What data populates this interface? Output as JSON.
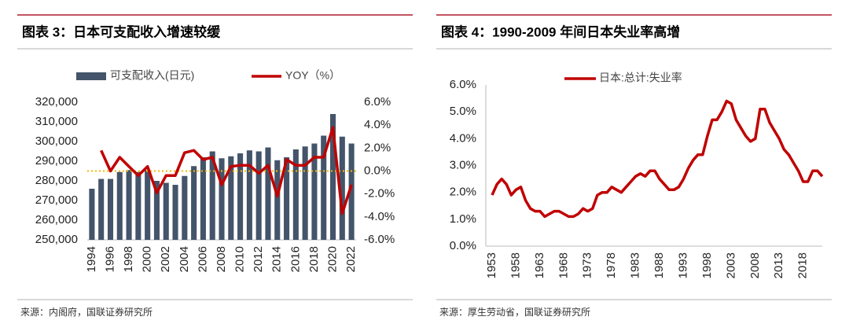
{
  "chart_data": [
    {
      "type": "bar",
      "heading": "图表 3：日本可支配收入增速较缓",
      "source": "来源：内阁府，国联证券研究所",
      "categories": [
        "1994",
        null,
        "1996",
        null,
        "1998",
        null,
        "2000",
        null,
        "2002",
        null,
        "2004",
        null,
        "2006",
        null,
        "2008",
        null,
        "2010",
        null,
        "2012",
        null,
        "2014",
        null,
        "2016",
        null,
        "2018",
        null,
        "2020",
        null,
        "2022"
      ],
      "series": [
        {
          "name": "可支配收入(日元)",
          "color": "#44546a",
          "type": "bar",
          "values": [
            276000,
            281000,
            281000,
            284500,
            285500,
            284500,
            285500,
            280000,
            279000,
            278000,
            282500,
            287500,
            292000,
            295000,
            291500,
            292500,
            294000,
            295500,
            295000,
            297000,
            290500,
            292000,
            296000,
            297500,
            299000,
            303000,
            314000,
            302500,
            299000
          ]
        },
        {
          "name": "YOY（%）",
          "color": "#c00000",
          "type": "line",
          "axis": "y2",
          "values": [
            null,
            1.8,
            0.0,
            1.2,
            0.4,
            -0.4,
            0.4,
            -1.9,
            -0.4,
            -0.4,
            1.6,
            1.8,
            1.0,
            1.2,
            -1.2,
            0.4,
            0.5,
            0.5,
            -0.2,
            0.5,
            -2.2,
            1.0,
            0.5,
            0.5,
            1.2,
            1.2,
            3.8,
            -3.7,
            -1.2
          ]
        }
      ],
      "ylim": [
        250000,
        320000
      ],
      "yticks": [
        {
          "value": 250000,
          "label": "250,000"
        },
        {
          "value": 260000,
          "label": "260,000"
        },
        {
          "value": 270000,
          "label": "270,000"
        },
        {
          "value": 280000,
          "label": "280,000"
        },
        {
          "value": 290000,
          "label": "290,000"
        },
        {
          "value": 300000,
          "label": "300,000"
        },
        {
          "value": 310000,
          "label": "310,000"
        },
        {
          "value": 320000,
          "label": "320,000"
        }
      ],
      "y2lim": [
        -6,
        6
      ],
      "y2ticks": [
        {
          "value": -6,
          "label": "-6.0%"
        },
        {
          "value": -4,
          "label": "-4.0%"
        },
        {
          "value": -2,
          "label": "-2.0%"
        },
        {
          "value": 0,
          "label": "0.0%"
        },
        {
          "value": 2,
          "label": "2.0%"
        },
        {
          "value": 4,
          "label": "4.0%"
        },
        {
          "value": 6,
          "label": "6.0%"
        }
      ],
      "reference_line": {
        "axis": "y2",
        "value": 0,
        "color": "#f5b800"
      },
      "legend": "top"
    },
    {
      "type": "line",
      "heading": "图表 4：1990-2009 年间日本失业率高增",
      "source": "来源：厚生劳动省，国联证券研究所",
      "x": [
        1953,
        1954,
        1955,
        1956,
        1957,
        1958,
        1959,
        1960,
        1961,
        1962,
        1963,
        1964,
        1965,
        1966,
        1967,
        1968,
        1969,
        1970,
        1971,
        1972,
        1973,
        1974,
        1975,
        1976,
        1977,
        1978,
        1979,
        1980,
        1981,
        1982,
        1983,
        1984,
        1985,
        1986,
        1987,
        1988,
        1989,
        1990,
        1991,
        1992,
        1993,
        1994,
        1995,
        1996,
        1997,
        1998,
        1999,
        2000,
        2001,
        2002,
        2003,
        2004,
        2005,
        2006,
        2007,
        2008,
        2009,
        2010,
        2011,
        2012,
        2013,
        2014,
        2015,
        2016,
        2017,
        2018,
        2019,
        2020,
        2021,
        2022
      ],
      "series": [
        {
          "name": "日本:总计:失业率",
          "color": "#c00000",
          "values": [
            1.9,
            2.3,
            2.5,
            2.3,
            1.9,
            2.1,
            2.2,
            1.7,
            1.4,
            1.3,
            1.3,
            1.1,
            1.2,
            1.3,
            1.3,
            1.2,
            1.1,
            1.1,
            1.2,
            1.4,
            1.3,
            1.4,
            1.9,
            2.0,
            2.0,
            2.2,
            2.1,
            2.0,
            2.2,
            2.4,
            2.6,
            2.7,
            2.6,
            2.8,
            2.8,
            2.5,
            2.3,
            2.1,
            2.1,
            2.2,
            2.5,
            2.9,
            3.2,
            3.4,
            3.4,
            4.1,
            4.7,
            4.7,
            5.0,
            5.4,
            5.3,
            4.7,
            4.4,
            4.1,
            3.9,
            4.0,
            5.1,
            5.1,
            4.6,
            4.3,
            4.0,
            3.6,
            3.4,
            3.1,
            2.8,
            2.4,
            2.4,
            2.8,
            2.8,
            2.6
          ]
        }
      ],
      "xlim": [
        1953,
        2022
      ],
      "xticks": [
        1953,
        1958,
        1963,
        1968,
        1973,
        1978,
        1983,
        1988,
        1993,
        1998,
        2003,
        2008,
        2013,
        2018
      ],
      "ylim": [
        0,
        6
      ],
      "yticks": [
        {
          "value": 0,
          "label": "0.0%"
        },
        {
          "value": 1,
          "label": "1.0%"
        },
        {
          "value": 2,
          "label": "2.0%"
        },
        {
          "value": 3,
          "label": "3.0%"
        },
        {
          "value": 4,
          "label": "4.0%"
        },
        {
          "value": 5,
          "label": "5.0%"
        },
        {
          "value": 6,
          "label": "6.0%"
        }
      ],
      "legend": "top"
    }
  ]
}
